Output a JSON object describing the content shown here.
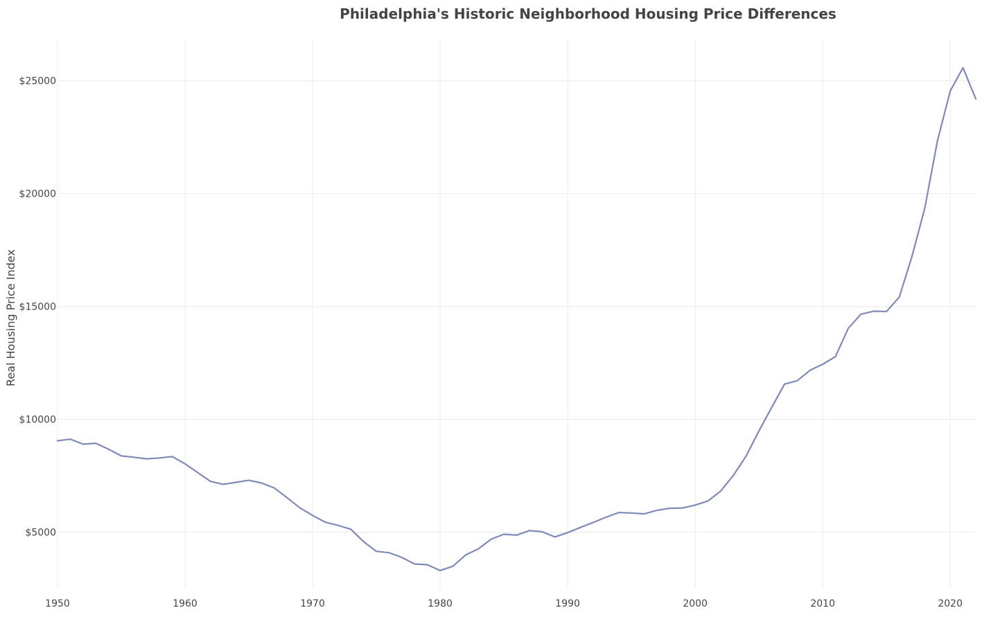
{
  "chart_data": {
    "type": "line",
    "title": "Philadelphia's Historic Neighborhood Housing Price Differences",
    "xlabel": "",
    "ylabel": "Real Housing Price Index",
    "xlim": [
      1950,
      2022
    ],
    "ylim": [
      2500,
      26800
    ],
    "x_ticks": [
      1950,
      1960,
      1970,
      1980,
      1990,
      2000,
      2010,
      2020
    ],
    "y_ticks": [
      5000,
      10000,
      15000,
      20000,
      25000
    ],
    "y_tick_prefix": "$",
    "grid": true,
    "legend": "none",
    "line_color": "#7f89b5",
    "x": [
      1950,
      1951,
      1952,
      1953,
      1954,
      1955,
      1956,
      1957,
      1958,
      1959,
      1960,
      1961,
      1962,
      1963,
      1964,
      1965,
      1966,
      1967,
      1968,
      1969,
      1970,
      1971,
      1972,
      1973,
      1974,
      1975,
      1976,
      1977,
      1978,
      1979,
      1980,
      1981,
      1982,
      1983,
      1984,
      1985,
      1986,
      1987,
      1988,
      1989,
      1990,
      1991,
      1992,
      1993,
      1994,
      1995,
      1996,
      1997,
      1998,
      1999,
      2000,
      2001,
      2002,
      2003,
      2004,
      2005,
      2006,
      2007,
      2008,
      2009,
      2010,
      2011,
      2012,
      2013,
      2014,
      2015,
      2016,
      2017,
      2018,
      2019,
      2020,
      2021,
      2022
    ],
    "series": [
      {
        "values": [
          9050,
          9120,
          8900,
          8940,
          8680,
          8380,
          8320,
          8250,
          8290,
          8350,
          8030,
          7640,
          7250,
          7120,
          7210,
          7300,
          7180,
          6960,
          6530,
          6080,
          5740,
          5440,
          5300,
          5130,
          4580,
          4150,
          4090,
          3880,
          3590,
          3560,
          3300,
          3490,
          3990,
          4260,
          4690,
          4910,
          4870,
          5070,
          5020,
          4790,
          4980,
          5210,
          5430,
          5660,
          5870,
          5850,
          5810,
          5970,
          6060,
          6070,
          6200,
          6380,
          6820,
          7520,
          8380,
          9490,
          10530,
          11560,
          11710,
          12170,
          12440,
          12780,
          14030,
          14660,
          14790,
          14780,
          15410,
          17220,
          19350,
          22350,
          24550,
          25580,
          24200
        ]
      }
    ]
  }
}
